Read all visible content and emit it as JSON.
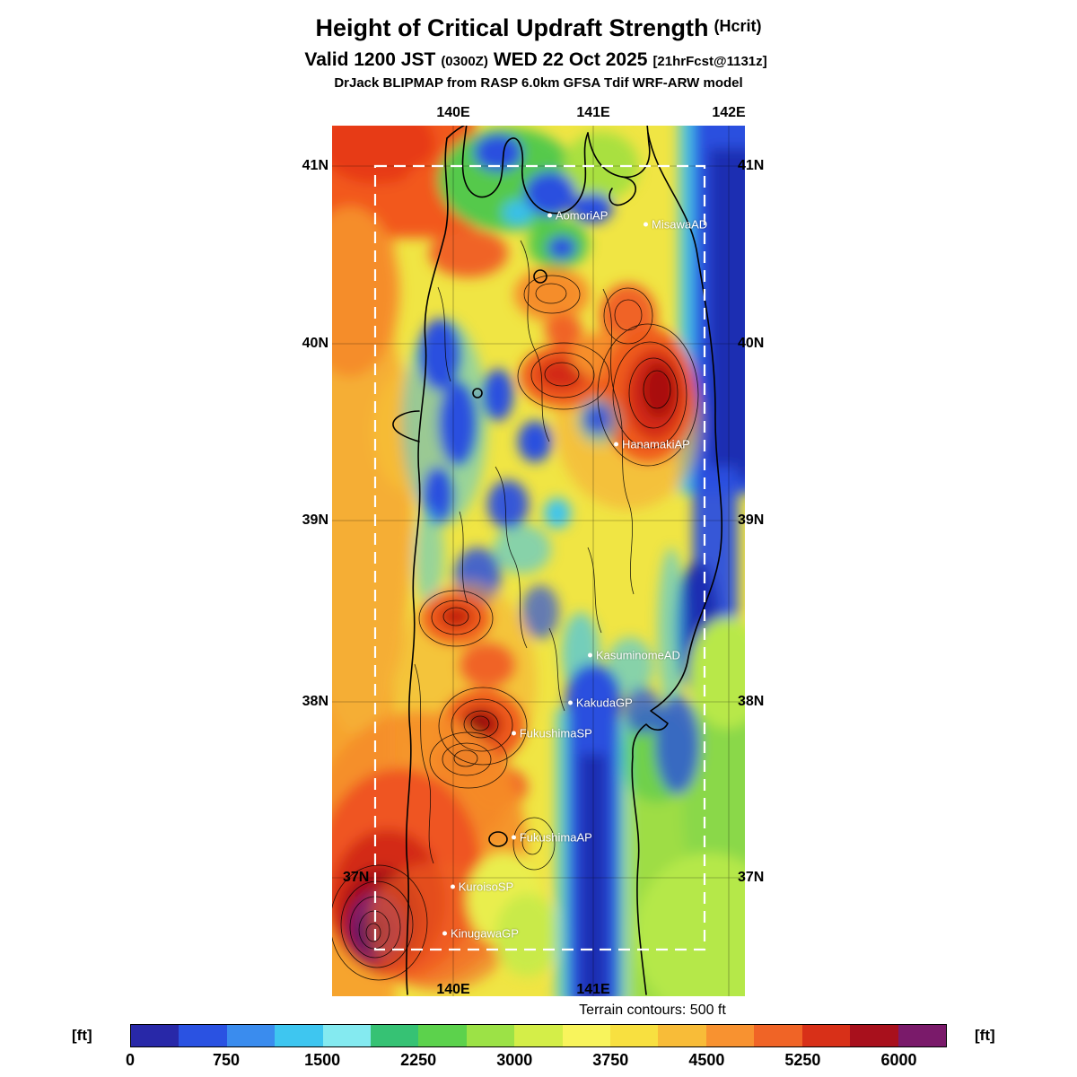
{
  "header": {
    "title": "Height of Critical Updraft Strength",
    "title_suffix": "(Hcrit)",
    "valid_prefix": "Valid 1200 JST",
    "valid_zulu": "(0300Z)",
    "valid_date": "WED 22 Oct 2025",
    "valid_fcst": "[21hrFcst@1131z]",
    "model_line": "DrJack BLIPMAP from RASP 6.0km GFSA Tdif WRF-ARW model"
  },
  "map": {
    "lat_labels": [
      "41N",
      "40N",
      "39N",
      "38N",
      "37N"
    ],
    "lon_labels_top": [
      "140E",
      "141E",
      "142E"
    ],
    "lon_labels_bottom": [
      "140E",
      "141E"
    ],
    "stations": [
      {
        "name": "AomoriAP"
      },
      {
        "name": "MisawaAD"
      },
      {
        "name": "HanamakiAP"
      },
      {
        "name": "KasuminomeAD"
      },
      {
        "name": "KakudaGP"
      },
      {
        "name": "FukushimaSP"
      },
      {
        "name": "FukushimaAP"
      },
      {
        "name": "KuroisoSP"
      },
      {
        "name": "KinugawaGP"
      }
    ]
  },
  "footer": {
    "terrain_note": "Terrain contours: 500 ft"
  },
  "colorbar": {
    "unit": "[ft]",
    "ticks": [
      0,
      750,
      1500,
      2250,
      3000,
      3750,
      4500,
      5250,
      6000
    ],
    "max": 6375,
    "colors": [
      "#2828a8",
      "#2a52e2",
      "#3a8cee",
      "#3ec6f0",
      "#84eaf0",
      "#36c274",
      "#5cd24c",
      "#9ce246",
      "#d4ee48",
      "#f8f45c",
      "#f8e040",
      "#f8bc38",
      "#f89230",
      "#f06426",
      "#d83018",
      "#a8101c",
      "#7a1a6a"
    ]
  },
  "chart_data": {
    "type": "heatmap",
    "title": "Height of Critical Updraft Strength (Hcrit)",
    "units": "ft",
    "x_axis": {
      "label": "longitude",
      "ticks": [
        "140E",
        "141E",
        "142E"
      ]
    },
    "y_axis": {
      "label": "latitude",
      "ticks": [
        "41N",
        "40N",
        "39N",
        "38N",
        "37N"
      ]
    },
    "colorscale": {
      "min": 0,
      "max": 6375,
      "tick_step": 750,
      "colors": [
        "#2828a8",
        "#2a52e2",
        "#3a8cee",
        "#3ec6f0",
        "#84eaf0",
        "#36c274",
        "#5cd24c",
        "#9ce246",
        "#d4ee48",
        "#f8f45c",
        "#f8e040",
        "#f8bc38",
        "#f89230",
        "#f06426",
        "#d83018",
        "#a8101c",
        "#7a1a6a"
      ]
    },
    "terrain_contour_interval_ft": 500,
    "stations": [
      "AomoriAP",
      "MisawaAD",
      "HanamakiAP",
      "KasuminomeAD",
      "KakudaGP",
      "FukushimaSP",
      "FukushimaAP",
      "KuroisoSP",
      "KinugawaGP"
    ],
    "notes": "Gridded forecast field over Tohoku, Japan; high (red/purple) values over mountain ridges and SW corner, low (blue) values along Pacific coast and valleys; white dashed box marks inner model domain."
  }
}
